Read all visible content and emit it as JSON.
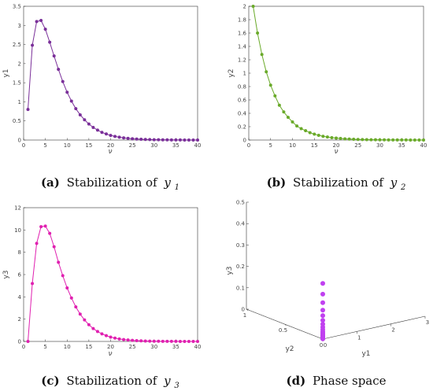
{
  "chart_data": [
    {
      "type": "line",
      "colors": {
        "series": "#7a2f99"
      },
      "x": [
        1,
        2,
        3,
        4,
        5,
        6,
        7,
        8,
        9,
        10,
        11,
        12,
        13,
        14,
        15,
        16,
        17,
        18,
        19,
        20,
        21,
        22,
        23,
        24,
        25,
        26,
        27,
        28,
        29,
        30,
        31,
        32,
        33,
        34,
        35,
        36,
        37,
        38,
        39,
        40
      ],
      "series": [
        {
          "values": [
            0.8,
            2.48,
            3.1,
            3.13,
            2.9,
            2.56,
            2.2,
            1.85,
            1.53,
            1.25,
            1.02,
            0.82,
            0.66,
            0.53,
            0.42,
            0.33,
            0.26,
            0.2,
            0.16,
            0.12,
            0.095,
            0.074,
            0.057,
            0.044,
            0.034,
            0.026,
            0.02,
            0.015,
            0.012,
            0.009,
            0.007,
            0.005,
            0.004,
            0.003,
            0.002,
            0.0015,
            0.001,
            0.0008,
            0.0006,
            0.0005
          ]
        }
      ],
      "xlabel": "ν",
      "ylabel": "y1",
      "xlim": [
        0,
        40
      ],
      "ylim": [
        0,
        3.5
      ],
      "xticks": [
        "0",
        "5",
        "10",
        "15",
        "20",
        "25",
        "30",
        "35",
        "40"
      ],
      "yticks": [
        "0",
        "0.5",
        "1",
        "1.5",
        "2",
        "2.5",
        "3",
        "3.5"
      ],
      "caption": {
        "label": "(a)",
        "text": "Stabilization of",
        "var": "y",
        "sub": "1"
      }
    },
    {
      "type": "line",
      "colors": {
        "series": "#6aaa2a"
      },
      "x": [
        1,
        2,
        3,
        4,
        5,
        6,
        7,
        8,
        9,
        10,
        11,
        12,
        13,
        14,
        15,
        16,
        17,
        18,
        19,
        20,
        21,
        22,
        23,
        24,
        25,
        26,
        27,
        28,
        29,
        30,
        31,
        32,
        33,
        34,
        35,
        36,
        37,
        38,
        39,
        40
      ],
      "series": [
        {
          "values": [
            2.0,
            1.6,
            1.28,
            1.02,
            0.82,
            0.66,
            0.52,
            0.42,
            0.34,
            0.27,
            0.21,
            0.17,
            0.14,
            0.11,
            0.088,
            0.07,
            0.056,
            0.045,
            0.036,
            0.029,
            0.023,
            0.018,
            0.015,
            0.012,
            0.0095,
            0.0076,
            0.006,
            0.0048,
            0.0039,
            0.0031,
            0.0025,
            0.002,
            0.0016,
            0.0013,
            0.001,
            0.0008,
            0.0006,
            0.0005,
            0.0004,
            0.0003
          ]
        }
      ],
      "xlabel": "ν",
      "ylabel": "y2",
      "xlim": [
        0,
        40
      ],
      "ylim": [
        0,
        2
      ],
      "xticks": [
        "0",
        "5",
        "10",
        "15",
        "20",
        "25",
        "30",
        "35",
        "40"
      ],
      "yticks": [
        "0",
        "0.2",
        "0.4",
        "0.6",
        "0.8",
        "1",
        "1.2",
        "1.4",
        "1.6",
        "1.8",
        "2"
      ],
      "caption": {
        "label": "(b)",
        "text": "Stabilization of",
        "var": "y",
        "sub": "2"
      }
    },
    {
      "type": "line",
      "colors": {
        "series": "#e020b0"
      },
      "x": [
        1,
        2,
        3,
        4,
        5,
        6,
        7,
        8,
        9,
        10,
        11,
        12,
        13,
        14,
        15,
        16,
        17,
        18,
        19,
        20,
        21,
        22,
        23,
        24,
        25,
        26,
        27,
        28,
        29,
        30,
        31,
        32,
        33,
        34,
        35,
        36,
        37,
        38,
        39,
        40
      ],
      "series": [
        {
          "values": [
            0,
            5.2,
            8.8,
            10.3,
            10.35,
            9.7,
            8.5,
            7.1,
            5.9,
            4.8,
            3.9,
            3.1,
            2.45,
            1.93,
            1.5,
            1.16,
            0.89,
            0.68,
            0.52,
            0.39,
            0.3,
            0.22,
            0.17,
            0.13,
            0.095,
            0.07,
            0.052,
            0.039,
            0.029,
            0.021,
            0.016,
            0.012,
            0.009,
            0.0065,
            0.0048,
            0.0035,
            0.0026,
            0.0019,
            0.0014,
            0.001
          ]
        }
      ],
      "xlabel": "ν",
      "ylabel": "y3",
      "xlim": [
        0,
        40
      ],
      "ylim": [
        0,
        12
      ],
      "xticks": [
        "0",
        "5",
        "10",
        "15",
        "20",
        "25",
        "30",
        "35",
        "40"
      ],
      "yticks": [
        "0",
        "2",
        "4",
        "6",
        "8",
        "10",
        "12"
      ],
      "caption": {
        "label": "(c)",
        "text": "Stabilization of",
        "var": "y",
        "sub": "3"
      }
    },
    {
      "type": "scatter",
      "colors": {
        "series": "#c040f0"
      },
      "points": [
        {
          "y1": 0,
          "y2": 0,
          "y3": 0.26
        },
        {
          "y1": 0,
          "y2": 0,
          "y3": 0.21
        },
        {
          "y1": 0,
          "y2": 0,
          "y3": 0.17
        },
        {
          "y1": 0,
          "y2": 0,
          "y3": 0.135
        },
        {
          "y1": 0,
          "y2": 0,
          "y3": 0.11
        },
        {
          "y1": 0,
          "y2": 0,
          "y3": 0.088
        },
        {
          "y1": 0,
          "y2": 0,
          "y3": 0.07
        },
        {
          "y1": 0,
          "y2": 0,
          "y3": 0.056
        },
        {
          "y1": 0,
          "y2": 0,
          "y3": 0.045
        },
        {
          "y1": 0,
          "y2": 0,
          "y3": 0.036
        },
        {
          "y1": 0,
          "y2": 0,
          "y3": 0.029
        },
        {
          "y1": 0,
          "y2": 0,
          "y3": 0.023
        },
        {
          "y1": 0,
          "y2": 0,
          "y3": 0.018
        },
        {
          "y1": 0,
          "y2": 0,
          "y3": 0.014
        },
        {
          "y1": 0,
          "y2": 0,
          "y3": 0.011
        },
        {
          "y1": 0,
          "y2": 0,
          "y3": 0.008
        },
        {
          "y1": 0,
          "y2": 0,
          "y3": 0.006
        },
        {
          "y1": 0,
          "y2": 0,
          "y3": 0.004
        },
        {
          "y1": 0,
          "y2": 0,
          "y3": 0.002
        },
        {
          "y1": 0,
          "y2": 0,
          "y3": 0.001
        }
      ],
      "axes": {
        "y1": {
          "label": "y1",
          "ticks": [
            "0",
            "1",
            "2",
            "3"
          ],
          "range": [
            0,
            3
          ]
        },
        "y2": {
          "label": "y2",
          "ticks": [
            "0",
            "0.5",
            "1"
          ],
          "range": [
            0,
            1
          ]
        },
        "y3": {
          "label": "y3",
          "ticks": [
            "0",
            "0.1",
            "0.2",
            "0.3",
            "0.4",
            "0.5"
          ],
          "range": [
            0,
            0.5
          ]
        }
      },
      "caption": {
        "label": "(d)",
        "text": "Phase space"
      }
    }
  ]
}
